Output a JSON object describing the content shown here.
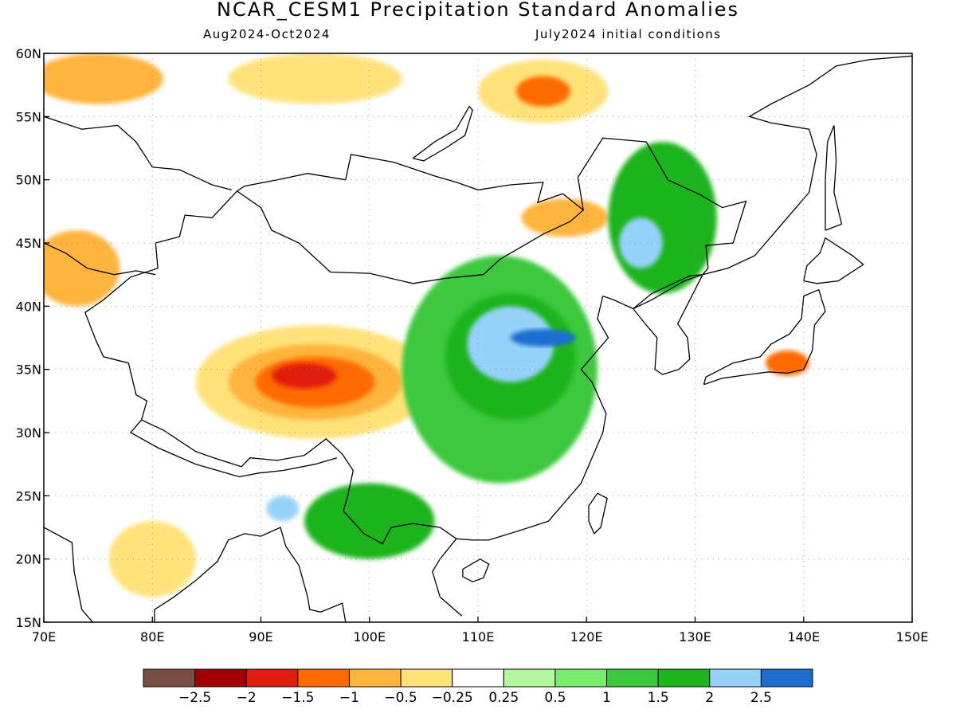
{
  "header": {
    "title": "NCAR_CESM1 Precipitation Standard Anomalies",
    "period": "Aug2024-Oct2024",
    "init": "July2024 initial conditions"
  },
  "map": {
    "lon_range": [
      70,
      150
    ],
    "lat_range": [
      15,
      60
    ],
    "lon_ticks": [
      "70E",
      "80E",
      "90E",
      "100E",
      "110E",
      "120E",
      "130E",
      "140E",
      "150E"
    ],
    "lat_ticks": [
      "15N",
      "20N",
      "25N",
      "30N",
      "35N",
      "40N",
      "45N",
      "50N",
      "55N",
      "60N"
    ],
    "gridlines": "dotted",
    "land_background": "#ffffff",
    "anomaly_regions": [
      {
        "name": "central-asia-west-dry",
        "level": -1,
        "lon": 73,
        "lat": 43,
        "rx": 4,
        "ry": 3
      },
      {
        "name": "kazakhstan-north-dry",
        "level": -1,
        "lon": 75,
        "lat": 58,
        "rx": 6,
        "ry": 2
      },
      {
        "name": "siberia-dry",
        "level": -0.5,
        "lon": 95,
        "lat": 58,
        "rx": 8,
        "ry": 2
      },
      {
        "name": "baikal-east-dry-outer",
        "level": -0.5,
        "lon": 116,
        "lat": 57,
        "rx": 6,
        "ry": 2.5
      },
      {
        "name": "baikal-east-dry-core",
        "level": -1.5,
        "lon": 116,
        "lat": 57,
        "rx": 2.5,
        "ry": 1.2
      },
      {
        "name": "tibet-dry-outer",
        "level": -0.5,
        "lon": 95,
        "lat": 34,
        "rx": 11,
        "ry": 4.5
      },
      {
        "name": "tibet-dry-mid",
        "level": -1,
        "lon": 95,
        "lat": 34,
        "rx": 8,
        "ry": 3
      },
      {
        "name": "tibet-dry-inner",
        "level": -1.5,
        "lon": 95,
        "lat": 34,
        "rx": 5.5,
        "ry": 2
      },
      {
        "name": "tibet-dry-core",
        "level": -2,
        "lon": 94,
        "lat": 34.5,
        "rx": 3,
        "ry": 1
      },
      {
        "name": "mongolia-east-dry",
        "level": -1,
        "lon": 118,
        "lat": 47,
        "rx": 4,
        "ry": 1.5
      },
      {
        "name": "bay-of-bengal-dry",
        "level": -0.5,
        "lon": 80,
        "lat": 20,
        "rx": 4,
        "ry": 3
      },
      {
        "name": "north-china-wet-outer",
        "level": 1,
        "lon": 112,
        "lat": 35,
        "rx": 9,
        "ry": 9
      },
      {
        "name": "north-china-wet-mid",
        "level": 1.5,
        "lon": 113,
        "lat": 36,
        "rx": 6,
        "ry": 5
      },
      {
        "name": "north-china-wet-core",
        "level": 2,
        "lon": 113,
        "lat": 37,
        "rx": 4,
        "ry": 3
      },
      {
        "name": "north-china-wet-max",
        "level": 2.5,
        "lon": 116,
        "lat": 37.5,
        "rx": 3,
        "ry": 0.7
      },
      {
        "name": "manchuria-wet",
        "level": 1.5,
        "lon": 127,
        "lat": 47,
        "rx": 5,
        "ry": 6
      },
      {
        "name": "manchuria-wet-core",
        "level": 2,
        "lon": 125,
        "lat": 45,
        "rx": 2,
        "ry": 2
      },
      {
        "name": "indochina-wet",
        "level": 1.5,
        "lon": 100,
        "lat": 23,
        "rx": 6,
        "ry": 3
      },
      {
        "name": "yunnan-wet-core",
        "level": 2,
        "lon": 92,
        "lat": 24,
        "rx": 1.5,
        "ry": 1
      },
      {
        "name": "japan-dry",
        "level": -1.5,
        "lon": 138.5,
        "lat": 35.5,
        "rx": 2,
        "ry": 1
      }
    ]
  },
  "colorbar": {
    "levels": [
      {
        "value": -3.0,
        "color": "#7a4f43"
      },
      {
        "value": -2.5,
        "color": "#a00000"
      },
      {
        "value": -2.0,
        "color": "#e01e10"
      },
      {
        "value": -1.5,
        "color": "#ff6a00"
      },
      {
        "value": -1.0,
        "color": "#ffb43c"
      },
      {
        "value": -0.5,
        "color": "#ffe27a"
      },
      {
        "value": -0.25,
        "color": "#ffffff"
      },
      {
        "value": 0.25,
        "color": "#b4f5a0"
      },
      {
        "value": 0.5,
        "color": "#78ec6c"
      },
      {
        "value": 1.0,
        "color": "#3cc83c"
      },
      {
        "value": 1.5,
        "color": "#1eb41e"
      },
      {
        "value": 2.0,
        "color": "#96d2fa"
      },
      {
        "value": 2.5,
        "color": "#1e6ed2"
      }
    ],
    "labels": [
      "-2.5",
      "-2",
      "-1.5",
      "-1",
      "-0.5",
      "-0.25",
      "0.25",
      "0.5",
      "1",
      "1.5",
      "2",
      "2.5"
    ]
  }
}
